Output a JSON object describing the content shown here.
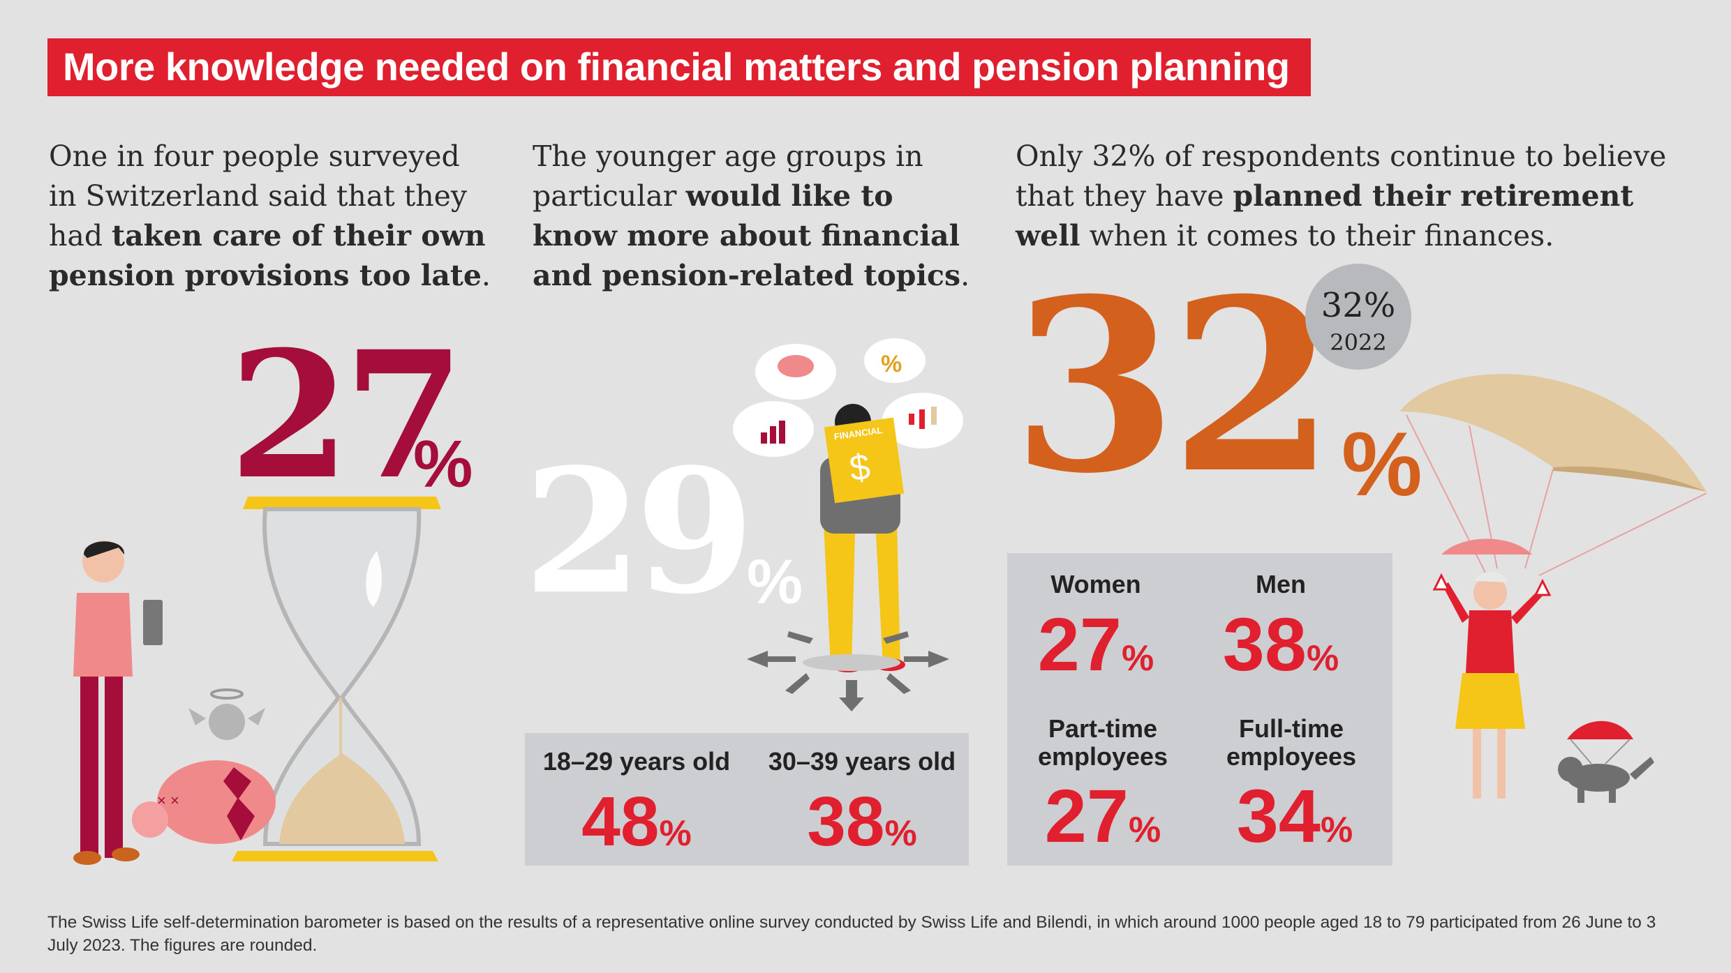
{
  "title": "More knowledge needed on financial matters and pension planning",
  "col1": {
    "intro_plain": "One in four people surveyed in Switzerland said that they had ",
    "intro_bold": "taken care of their own pension provisions too late",
    "intro_end": ".",
    "number": "27",
    "unit": "%"
  },
  "col2": {
    "intro_plain": "The younger age groups in particular ",
    "intro_bold": "would like to know more about financial and pension-related topics",
    "intro_end": ".",
    "number": "29",
    "unit": "%",
    "book_label": "FINANCIAL",
    "book_symbol": "$",
    "bubble_symbol": "%",
    "groups": [
      {
        "label": "18–29 years old",
        "value": "48",
        "unit": "%"
      },
      {
        "label": "30–39 years old",
        "value": "38",
        "unit": "%"
      }
    ]
  },
  "col3": {
    "intro_plain": "Only 32% of respondents continue to believe that they have ",
    "intro_bold": "planned their retirement well",
    "intro_end": " when it comes to their finances.",
    "number": "32",
    "unit": "%",
    "badge_value": "32%",
    "badge_year": "2022",
    "groups": [
      {
        "label": "Women",
        "value": "27",
        "unit": "%"
      },
      {
        "label": "Men",
        "value": "38",
        "unit": "%"
      },
      {
        "label": "Part-time employees",
        "value": "27",
        "unit": "%"
      },
      {
        "label": "Full-time employees",
        "value": "34",
        "unit": "%"
      }
    ]
  },
  "footnote": "The Swiss Life self-determination barometer is based on the results of a representative online survey conducted by Swiss Life and Bilendi, in which around 1000 people aged 18 to 79 participated from 26 June to 3 July 2023. The figures are rounded.",
  "colors": {
    "background": "#e2e2e2",
    "brand_red": "#e0202e",
    "burgundy": "#a50d3a",
    "orange": "#d4601e",
    "panel": "#cdced2",
    "badge": "#b8b9bd",
    "sand": "#e2c9a0",
    "yellow": "#f5c518"
  },
  "icons": [
    "hourglass-icon",
    "piggy-bank-icon",
    "bar-chart-icon",
    "candlestick-icon",
    "parachute-icon",
    "dog-icon",
    "arrows-icon"
  ]
}
